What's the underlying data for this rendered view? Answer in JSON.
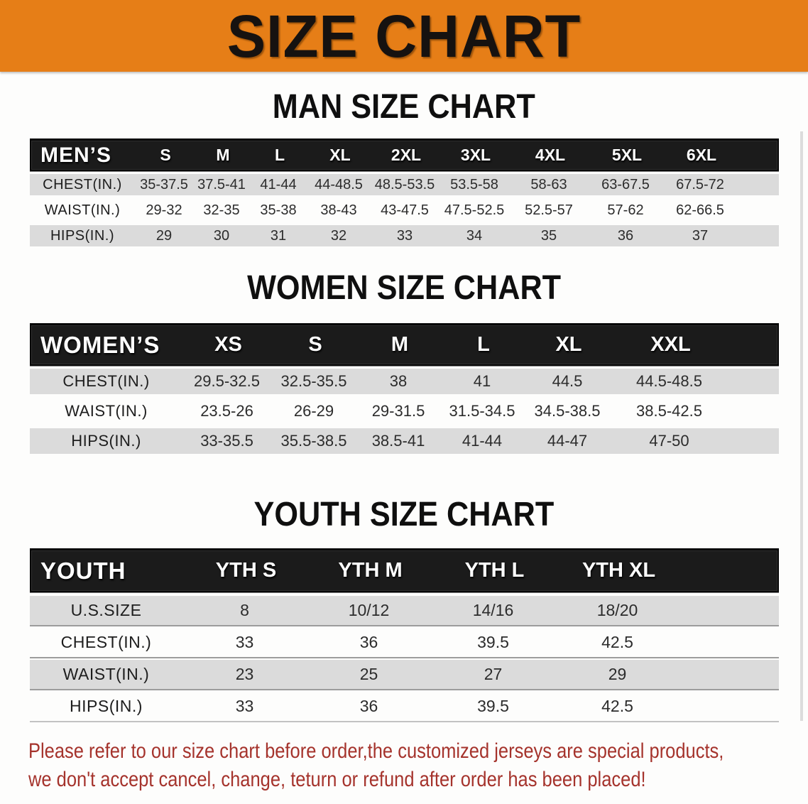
{
  "banner": {
    "title": "SIZE CHART"
  },
  "colors": {
    "banner_bg": "#E67E17",
    "table_header_bg": "#1B1B1B",
    "row_stripe": "#DBDBDB",
    "footer_text": "#A5332C"
  },
  "sections": {
    "men": {
      "heading": "MAN SIZE CHART"
    },
    "women": {
      "heading": "WOMEN SIZE CHART"
    },
    "youth": {
      "heading": "YOUTH SIZE CHART"
    }
  },
  "tables": {
    "men": {
      "header": [
        "MEN’S",
        "S",
        "M",
        "L",
        "XL",
        "2XL",
        "3XL",
        "4XL",
        "5XL",
        "6XL"
      ],
      "rows": [
        {
          "label": "CHEST(IN.)",
          "values": [
            "35-37.5",
            "37.5-41",
            "41-44",
            "44-48.5",
            "48.5-53.5",
            "53.5-58",
            "58-63",
            "63-67.5",
            "67.5-72"
          ]
        },
        {
          "label": "WAIST(IN.)",
          "values": [
            "29-32",
            "32-35",
            "35-38",
            "38-43",
            "43-47.5",
            "47.5-52.5",
            "52.5-57",
            "57-62",
            "62-66.5"
          ]
        },
        {
          "label": "HIPS(IN.)",
          "values": [
            "29",
            "30",
            "31",
            "32",
            "33",
            "34",
            "35",
            "36",
            "37"
          ]
        }
      ]
    },
    "women": {
      "header": [
        "WOMEN’S",
        "XS",
        "S",
        "M",
        "L",
        "XL",
        "XXL"
      ],
      "rows": [
        {
          "label": "CHEST(IN.)",
          "values": [
            "29.5-32.5",
            "32.5-35.5",
            "38",
            "41",
            "44.5",
            "44.5-48.5"
          ]
        },
        {
          "label": "WAIST(IN.)",
          "values": [
            "23.5-26",
            "26-29",
            "29-31.5",
            "31.5-34.5",
            "34.5-38.5",
            "38.5-42.5"
          ]
        },
        {
          "label": "HIPS(IN.)",
          "values": [
            "33-35.5",
            "35.5-38.5",
            "38.5-41",
            "41-44",
            "44-47",
            "47-50"
          ]
        }
      ]
    },
    "youth": {
      "header": [
        "YOUTH",
        "YTH S",
        "YTH M",
        "YTH L",
        "YTH XL"
      ],
      "rows": [
        {
          "label": "U.S.SIZE",
          "values": [
            "8",
            "10/12",
            "14/16",
            "18/20"
          ]
        },
        {
          "label": "CHEST(IN.)",
          "values": [
            "33",
            "36",
            "39.5",
            "42.5"
          ]
        },
        {
          "label": "WAIST(IN.)",
          "values": [
            "23",
            "25",
            "27",
            "29"
          ]
        },
        {
          "label": "HIPS(IN.)",
          "values": [
            "33",
            "36",
            "39.5",
            "42.5"
          ]
        }
      ]
    }
  },
  "footer": {
    "line1": "Please refer to our size chart before order,the customized jerseys are special products,",
    "line2": "we don't accept cancel, change, teturn or refund after order has been placed!"
  }
}
